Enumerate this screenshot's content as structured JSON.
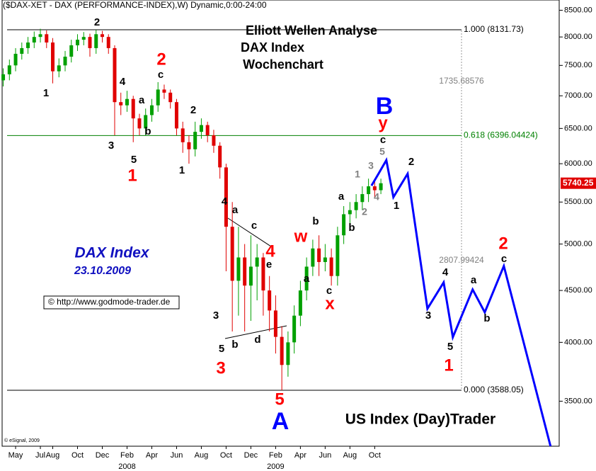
{
  "chart_data": {
    "type": "candlestick",
    "title": "($DAX-XET - DAX (PERFORMANCE-INDEX),W) Dynamic,0:00-24:00",
    "headline": [
      "Elliott Wellen Analyse",
      "DAX Index",
      "Wochenchart"
    ],
    "side_title": "DAX Index",
    "date": "23.10.2009",
    "source": "© http://www.godmode-trader.de",
    "footer": "US Index (Day)Trader",
    "copyright": "© eSignal, 2009",
    "log_scale": true,
    "ylim": [
      3160,
      8700
    ],
    "yticks": [
      {
        "value": 3500,
        "label": "3500.00"
      },
      {
        "value": 4000,
        "label": "4000.00"
      },
      {
        "value": 4500,
        "label": "4500.00"
      },
      {
        "value": 5000,
        "label": "5000.00"
      },
      {
        "value": 5500,
        "label": "5500.00"
      },
      {
        "value": 6000,
        "label": "6000.00"
      },
      {
        "value": 6500,
        "label": "6500.00"
      },
      {
        "value": 7000,
        "label": "7000.00"
      },
      {
        "value": 7500,
        "label": "7500.00"
      },
      {
        "value": 8000,
        "label": "8000.00"
      },
      {
        "value": 8500,
        "label": "8500.00"
      }
    ],
    "xlim": [
      -1.26,
      43.9
    ],
    "xticks": [
      {
        "value": 0,
        "label": "May"
      },
      {
        "value": 2,
        "label": "Jul"
      },
      {
        "value": 3,
        "label": "Aug"
      },
      {
        "value": 5,
        "label": "Oct"
      },
      {
        "value": 7,
        "label": "Dec"
      },
      {
        "value": 9,
        "label": "Feb"
      },
      {
        "value": 11,
        "label": "Apr"
      },
      {
        "value": 13,
        "label": "Jun"
      },
      {
        "value": 15,
        "label": "Aug"
      },
      {
        "value": 17,
        "label": "Oct"
      },
      {
        "value": 19,
        "label": "Dec"
      },
      {
        "value": 21,
        "label": "Feb"
      },
      {
        "value": 23,
        "label": "Apr"
      },
      {
        "value": 25,
        "label": "Jun"
      },
      {
        "value": 27,
        "label": "Aug"
      },
      {
        "value": 29,
        "label": "Oct"
      }
    ],
    "year_labels": [
      {
        "value": 9,
        "label": "2008"
      },
      {
        "value": 21,
        "label": "2009"
      }
    ],
    "up_color": "#00a000",
    "down_color": "#e00000",
    "x": [
      -1,
      -0.5,
      0,
      0.5,
      1,
      1.5,
      2,
      2.5,
      3,
      3.5,
      4,
      4.5,
      5,
      5.5,
      6,
      6.5,
      7,
      7.5,
      8,
      8.5,
      9,
      9.5,
      10,
      10.5,
      11,
      11.5,
      12,
      12.5,
      13,
      13.5,
      14,
      14.5,
      15,
      15.5,
      16,
      16.5,
      17,
      17.5,
      18,
      18.5,
      19,
      19.5,
      20,
      20.5,
      21,
      21.5,
      22,
      22.5,
      23,
      23.5,
      24,
      24.5,
      25,
      25.5,
      26,
      26.5,
      27,
      27.5,
      28,
      28.5,
      29,
      29.5
    ],
    "open": [
      7250,
      7350,
      7500,
      7700,
      7800,
      7900,
      8000,
      8050,
      7900,
      7400,
      7500,
      7650,
      7850,
      7950,
      8000,
      7800,
      8050,
      8000,
      7800,
      6900,
      6850,
      6950,
      6650,
      6500,
      6700,
      6850,
      7100,
      7050,
      6900,
      6500,
      6300,
      6200,
      6450,
      6550,
      6400,
      6250,
      5950,
      5200,
      4600,
      4850,
      4550,
      4750,
      4850,
      4500,
      4300,
      4050,
      3800,
      4000,
      4250,
      4500,
      4750,
      4950,
      4800,
      4850,
      4650,
      5100,
      5350,
      5400,
      5500,
      5600,
      5700,
      5650
    ],
    "high": [
      7450,
      7600,
      7800,
      7900,
      8000,
      8100,
      8150,
      8120,
      7980,
      7620,
      7750,
      7950,
      8050,
      8090,
      8060,
      8130,
      8110,
      8050,
      7850,
      7050,
      7080,
      7000,
      6720,
      6800,
      6950,
      7220,
      7180,
      7100,
      6950,
      6600,
      6400,
      6600,
      6650,
      6600,
      6480,
      6300,
      6000,
      5500,
      5200,
      5000,
      5100,
      5000,
      4900,
      4650,
      4450,
      4150,
      4100,
      4350,
      4600,
      4850,
      5050,
      5100,
      5000,
      4950,
      5200,
      5450,
      5500,
      5600,
      5700,
      5800,
      5780,
      5800
    ],
    "low": [
      7150,
      7250,
      7400,
      7600,
      7700,
      7800,
      7900,
      7800,
      7200,
      7300,
      7400,
      7550,
      7750,
      7850,
      7650,
      7700,
      7900,
      7700,
      6400,
      6700,
      6750,
      6300,
      6400,
      6400,
      6600,
      6750,
      6950,
      6800,
      6400,
      6150,
      6000,
      6100,
      6350,
      6300,
      6150,
      5800,
      4700,
      4100,
      4250,
      4100,
      4200,
      4400,
      4250,
      4100,
      3900,
      3588,
      3700,
      3900,
      4150,
      4400,
      4650,
      4650,
      4700,
      4550,
      4550,
      5000,
      5150,
      5300,
      5400,
      5500,
      5550,
      5600
    ],
    "close": [
      7350,
      7500,
      7700,
      7800,
      7900,
      8000,
      8050,
      7900,
      7400,
      7500,
      7650,
      7850,
      7950,
      8000,
      7800,
      8050,
      8000,
      7800,
      6900,
      6850,
      6950,
      6650,
      6500,
      6700,
      6850,
      7100,
      7050,
      6900,
      6500,
      6300,
      6200,
      6450,
      6550,
      6400,
      6250,
      5950,
      5200,
      4600,
      4850,
      4550,
      4750,
      4850,
      4500,
      4300,
      4050,
      3800,
      4000,
      4250,
      4500,
      4750,
      4950,
      4800,
      4850,
      4650,
      5100,
      5350,
      5400,
      5500,
      5600,
      5700,
      5650,
      5740
    ],
    "last_price": 5740.25,
    "forecast": {
      "color": "#0000ff",
      "x": [
        28.74,
        29.31,
        29.94,
        30.51,
        31.66,
        33.26,
        34.57,
        35.31,
        36.91,
        37.89,
        39.43,
        43.2
      ],
      "values": [
        5708,
        5865,
        6048,
        5561,
        5865,
        4318,
        4583,
        4047,
        4510,
        4282,
        4757,
        3160
      ]
    },
    "levels": [
      {
        "value": 8131.73,
        "label": "1.000 (8131.73)",
        "color": "#000000"
      },
      {
        "value": 6396.04424,
        "label": "0.618 (6396.04424)",
        "color": "#008000"
      },
      {
        "value": 3588.05,
        "label": "0.000 (3588.05)",
        "color": "#000000"
      }
    ],
    "annotations": [
      "1735.68576",
      "2807.99424"
    ],
    "wave_label_groups": [
      {
        "color": "#000000",
        "labels": [
          "2",
          "1",
          "4",
          "a",
          "c",
          "b",
          "3",
          "5",
          "2",
          "1",
          "4",
          "a",
          "c",
          "e",
          "3",
          "5",
          "b",
          "d",
          "b",
          "a",
          "c",
          "a",
          "b",
          "c",
          "2",
          "1",
          "3",
          "4",
          "5",
          "a",
          "b",
          "c"
        ]
      },
      {
        "color": "#808080",
        "labels": [
          "1",
          "3",
          "5",
          "2",
          "4"
        ]
      },
      {
        "color": "#ff0000",
        "labels": [
          "1",
          "2",
          "3",
          "4",
          "5",
          "w",
          "y",
          "x",
          "1",
          "2"
        ]
      },
      {
        "color": "#0000ff",
        "labels": [
          "B",
          "A"
        ]
      }
    ]
  }
}
